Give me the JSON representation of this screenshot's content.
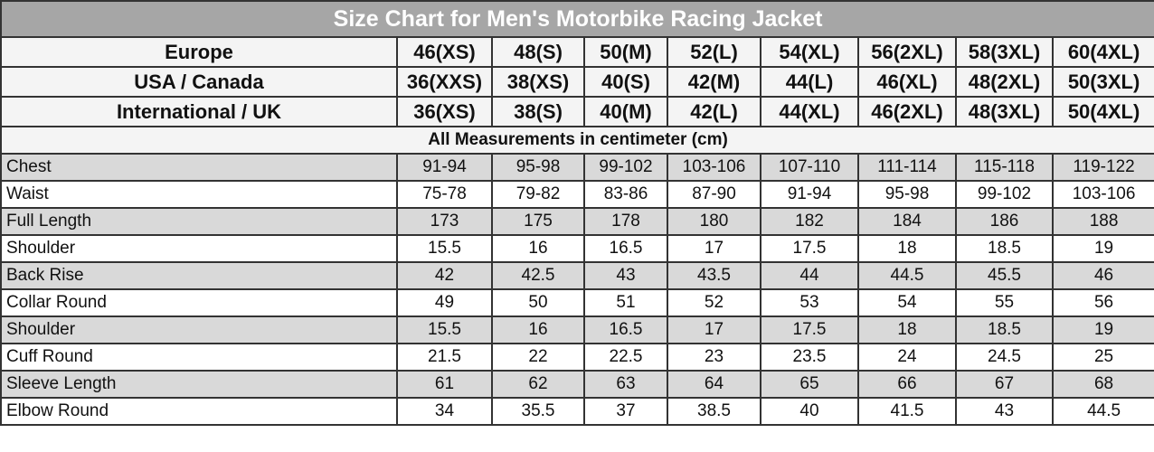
{
  "title": "Size Chart for Men's Motorbike Racing Jacket",
  "size_rows": [
    {
      "label": "Europe",
      "values": [
        "46(XS)",
        "48(S)",
        "50(M)",
        "52(L)",
        "54(XL)",
        "56(2XL)",
        "58(3XL)",
        "60(4XL)"
      ]
    },
    {
      "label": "USA / Canada",
      "values": [
        "36(XXS)",
        "38(XS)",
        "40(S)",
        "42(M)",
        "44(L)",
        "46(XL)",
        "48(2XL)",
        "50(3XL)"
      ]
    },
    {
      "label": "International / UK",
      "values": [
        "36(XS)",
        "38(S)",
        "40(M)",
        "42(L)",
        "44(XL)",
        "46(2XL)",
        "48(3XL)",
        "50(4XL)"
      ]
    }
  ],
  "note": "All Measurements in centimeter (cm)",
  "measurements": [
    {
      "label": "Chest",
      "values": [
        "91-94",
        "95-98",
        "99-102",
        "103-106",
        "107-110",
        "111-114",
        "115-118",
        "119-122"
      ]
    },
    {
      "label": "Waist",
      "values": [
        "75-78",
        "79-82",
        "83-86",
        "87-90",
        "91-94",
        "95-98",
        "99-102",
        "103-106"
      ]
    },
    {
      "label": "Full Length",
      "values": [
        "173",
        "175",
        "178",
        "180",
        "182",
        "184",
        "186",
        "188"
      ]
    },
    {
      "label": "Shoulder",
      "values": [
        "15.5",
        "16",
        "16.5",
        "17",
        "17.5",
        "18",
        "18.5",
        "19"
      ]
    },
    {
      "label": "Back Rise",
      "values": [
        "42",
        "42.5",
        "43",
        "43.5",
        "44",
        "44.5",
        "45.5",
        "46"
      ]
    },
    {
      "label": "Collar Round",
      "values": [
        "49",
        "50",
        "51",
        "52",
        "53",
        "54",
        "55",
        "56"
      ]
    },
    {
      "label": "Shoulder",
      "values": [
        "15.5",
        "16",
        "16.5",
        "17",
        "17.5",
        "18",
        "18.5",
        "19"
      ]
    },
    {
      "label": "Cuff Round",
      "values": [
        "21.5",
        "22",
        "22.5",
        "23",
        "23.5",
        "24",
        "24.5",
        "25"
      ]
    },
    {
      "label": "Sleeve Length",
      "values": [
        "61",
        "62",
        "63",
        "64",
        "65",
        "66",
        "67",
        "68"
      ]
    },
    {
      "label": "Elbow Round",
      "values": [
        "34",
        "35.5",
        "37",
        "38.5",
        "40",
        "41.5",
        "43",
        "44.5"
      ]
    }
  ],
  "colors": {
    "title_bg": "#a6a6a6",
    "stripe": "#d9d9d9"
  }
}
